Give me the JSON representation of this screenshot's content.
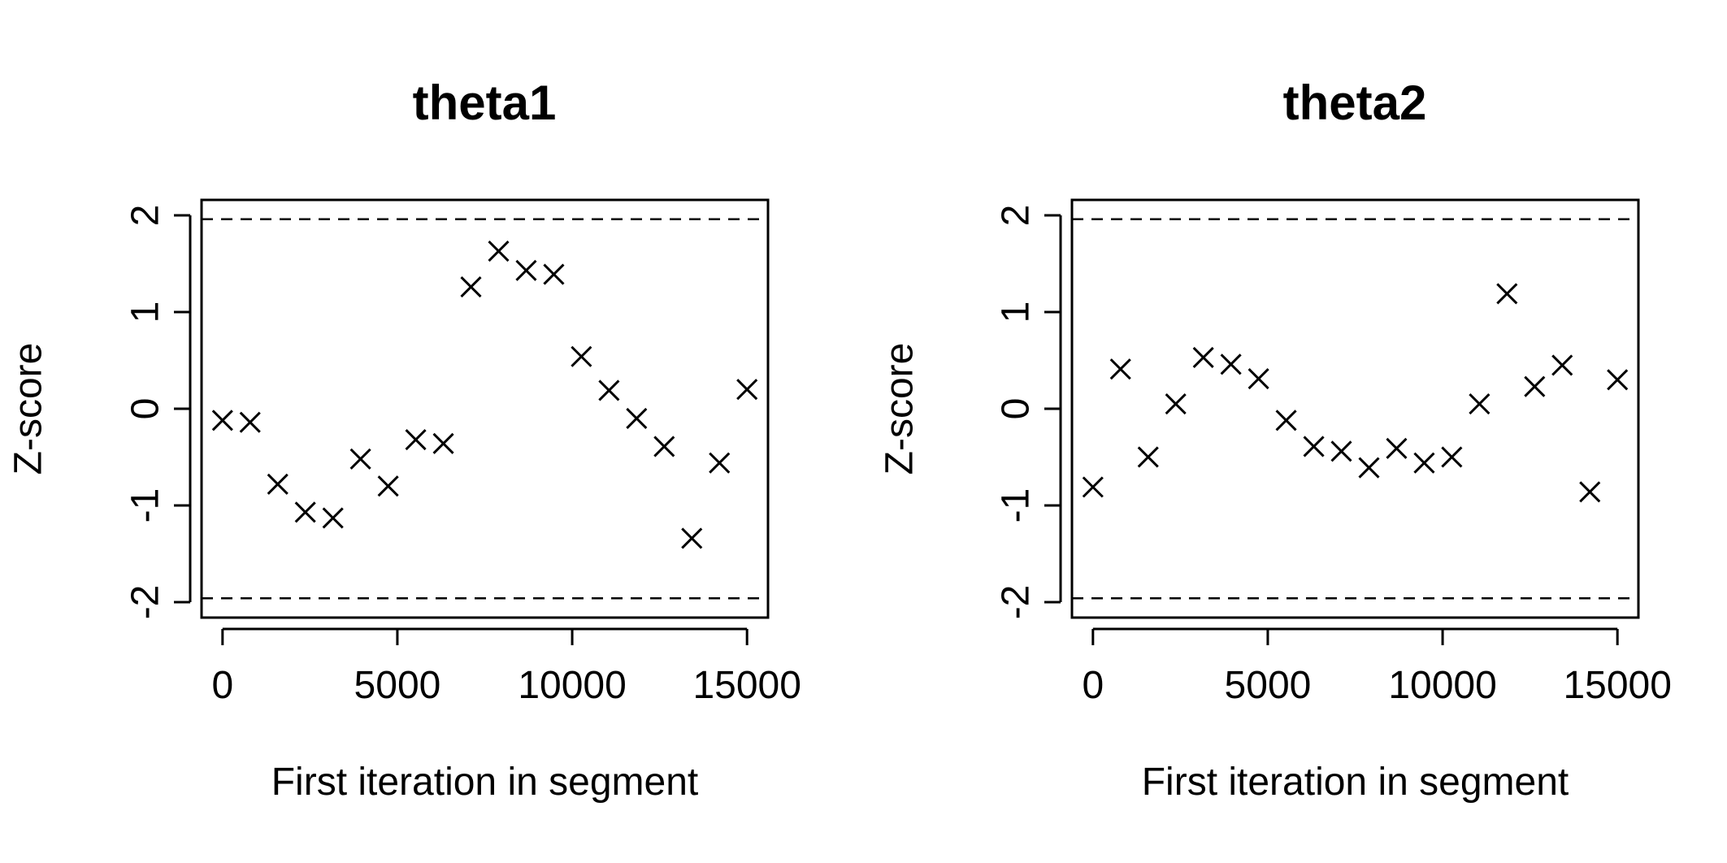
{
  "chart_data": [
    {
      "type": "scatter",
      "title": "theta1",
      "xlabel": "First iteration in segment",
      "ylabel": "Z-score",
      "xlim": [
        0,
        15000
      ],
      "ylim": [
        -2,
        2
      ],
      "xticks": [
        "0",
        "5000",
        "10000",
        "15000"
      ],
      "yticks": [
        "-2",
        "-1",
        "0",
        "1",
        "2"
      ],
      "reference_lines": [
        -1.96,
        1.96
      ],
      "marker": "x",
      "x": [
        0,
        789,
        1579,
        2368,
        3158,
        3947,
        4737,
        5526,
        6316,
        7105,
        7895,
        8684,
        9474,
        10263,
        11053,
        11842,
        12632,
        13421,
        14211,
        15000
      ],
      "y": [
        -0.12,
        -0.14,
        -0.78,
        -1.07,
        -1.13,
        -0.52,
        -0.8,
        -0.32,
        -0.36,
        1.26,
        1.63,
        1.43,
        1.39,
        0.54,
        0.19,
        -0.1,
        -0.39,
        -1.34,
        -0.56,
        0.2
      ]
    },
    {
      "type": "scatter",
      "title": "theta2",
      "xlabel": "First iteration in segment",
      "ylabel": "Z-score",
      "xlim": [
        0,
        15000
      ],
      "ylim": [
        -2,
        2
      ],
      "xticks": [
        "0",
        "5000",
        "10000",
        "15000"
      ],
      "yticks": [
        "-2",
        "-1",
        "0",
        "1",
        "2"
      ],
      "reference_lines": [
        -1.96,
        1.96
      ],
      "marker": "x",
      "x": [
        0,
        789,
        1579,
        2368,
        3158,
        3947,
        4737,
        5526,
        6316,
        7105,
        7895,
        8684,
        9474,
        10263,
        11053,
        11842,
        12632,
        13421,
        14211,
        15000
      ],
      "y": [
        -0.81,
        0.41,
        -0.5,
        0.05,
        0.53,
        0.46,
        0.31,
        -0.12,
        -0.39,
        -0.44,
        -0.61,
        -0.41,
        -0.56,
        -0.5,
        0.05,
        1.19,
        0.23,
        0.45,
        -0.86,
        0.3
      ]
    }
  ]
}
